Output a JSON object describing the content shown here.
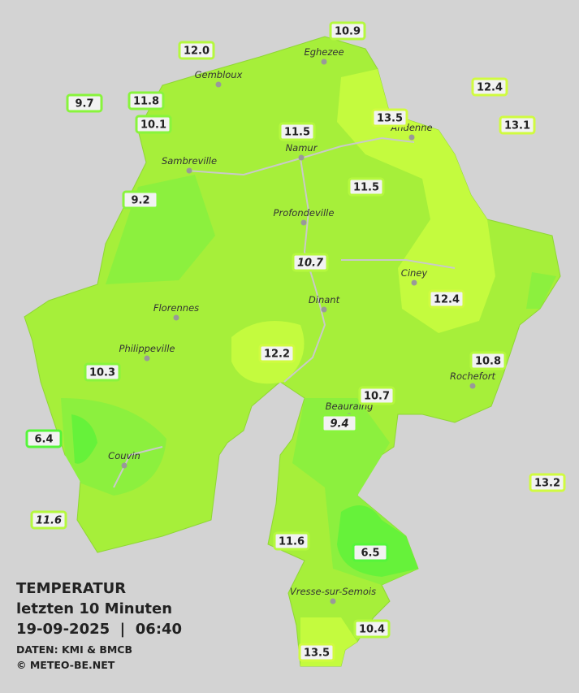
{
  "title": "TEMPERATUR",
  "subtitle": "letzten 10 Minuten",
  "datetime": "19-09-2025  |  06:40",
  "source": "DATEN: KMI & BMCB",
  "credit": "© METEO-BE.NET",
  "cities": [
    "Eghezee",
    "Gembloux",
    "Andenne",
    "Namur",
    "Sambreville",
    "Profondeville",
    "Ciney",
    "Dinant",
    "Florennes",
    "Philippeville",
    "Rochefort",
    "Beauraing",
    "Couvin",
    "Vresse-sur-Semois"
  ],
  "stations": [
    "12.0",
    "10.9",
    "9.7",
    "11.8",
    "10.1",
    "12.4",
    "13.5",
    "11.5",
    "13.1",
    "9.2",
    "11.5",
    "10.7",
    "12.4",
    "12.2",
    "10.8",
    "10.3",
    "10.7",
    "9.4",
    "6.4",
    "13.2",
    "11.6",
    "11.6",
    "6.5",
    "10.4",
    "13.5"
  ]
}
